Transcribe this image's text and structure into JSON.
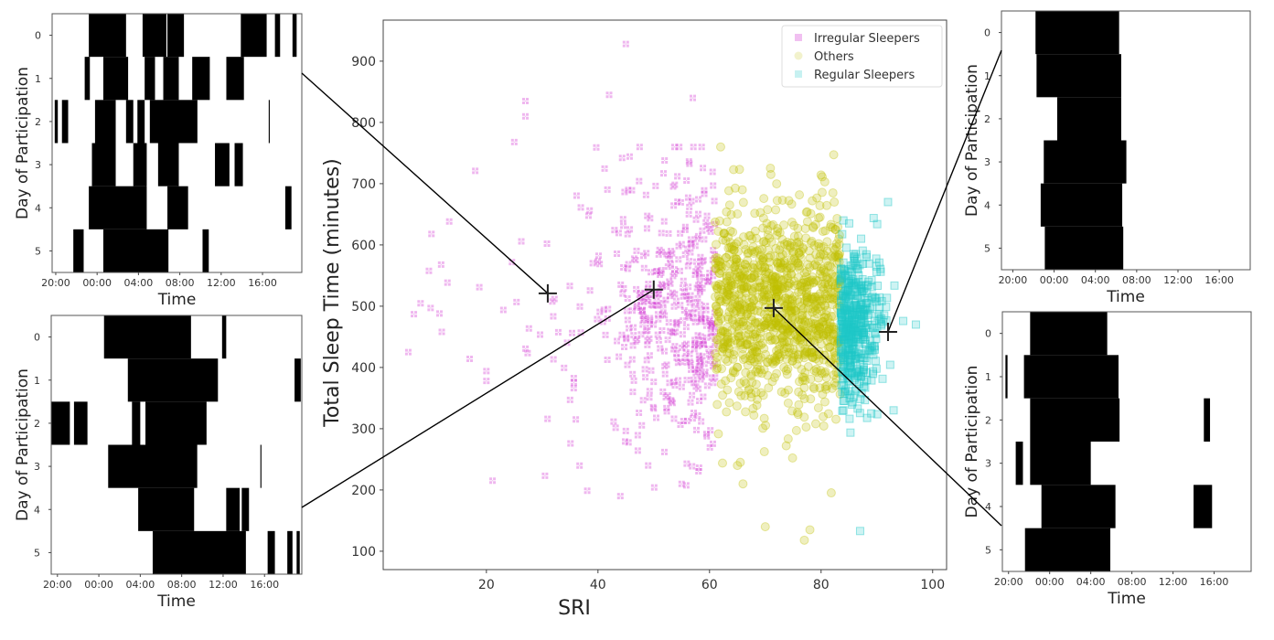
{
  "chart_data": [
    {
      "type": "scatter",
      "title": "",
      "xlabel": "SRI",
      "ylabel": "Total Sleep Time (minutes)",
      "xlim": [
        1.5,
        102.5
      ],
      "ylim": [
        70,
        967
      ],
      "xticks": [
        20,
        40,
        60,
        80,
        100
      ],
      "yticks": [
        100,
        200,
        300,
        400,
        500,
        600,
        700,
        800,
        900
      ],
      "legend": {
        "placement": "top-right",
        "entries": [
          "Irregular Sleepers",
          "Others",
          "Regular Sleepers"
        ]
      },
      "series": [
        {
          "name": "Irregular Sleepers",
          "color": "#d030d0",
          "marker": "x-square",
          "sri_range": [
            5,
            61
          ],
          "approx_count": 450,
          "center": [
            52,
            490
          ],
          "spread": [
            10,
            110
          ],
          "notable_points": [
            [
              6,
              425
            ],
            [
              7,
              487
            ],
            [
              12,
              458
            ],
            [
              10,
              497
            ],
            [
              17,
              414
            ],
            [
              20,
              378
            ],
            [
              20,
              394
            ],
            [
              27,
              835
            ],
            [
              27,
              810
            ],
            [
              25,
              768
            ],
            [
              18,
              721
            ],
            [
              45,
              928
            ],
            [
              42,
              845
            ],
            [
              57,
              840
            ],
            [
              35,
              347
            ],
            [
              55,
              210
            ],
            [
              49,
              240
            ]
          ]
        },
        {
          "name": "Others",
          "color": "#c0c000",
          "marker": "circle",
          "sri_range": [
            61,
            83.5
          ],
          "approx_count": 1100,
          "center": [
            72,
            500
          ],
          "spread": [
            6.5,
            85
          ],
          "notable_points": [
            [
              62,
              760
            ],
            [
              71,
              715
            ],
            [
              70,
              140
            ],
            [
              78,
              135
            ],
            [
              77,
              118
            ],
            [
              65,
              240
            ],
            [
              66,
              210
            ]
          ]
        },
        {
          "name": "Regular Sleepers",
          "color": "#20c8c8",
          "marker": "square",
          "sri_range": [
            83.5,
            98
          ],
          "approx_count": 450,
          "center": [
            88,
            470
          ],
          "spread": [
            3.5,
            60
          ],
          "notable_points": [
            [
              84,
              640
            ],
            [
              92,
              670
            ],
            [
              97,
              470
            ],
            [
              87,
              133
            ],
            [
              89,
              325
            ],
            [
              84,
              330
            ],
            [
              93,
              330
            ]
          ]
        }
      ],
      "centroids": [
        {
          "sri": 31,
          "tst": 521,
          "panel": "top-left"
        },
        {
          "sri": 50,
          "tst": 527,
          "panel": "bottom-left"
        },
        {
          "sri": 71.5,
          "tst": 497,
          "panel": "bottom-right"
        },
        {
          "sri": 92,
          "tst": 458,
          "panel": "top-right"
        }
      ]
    },
    {
      "type": "timeline",
      "panel": "top-left",
      "xlabel": "Time",
      "ylabel": "Day of Participation",
      "xticks": [
        "20:00",
        "00:00",
        "04:00",
        "08:00",
        "12:00",
        "16:00"
      ],
      "yticks": [
        "0",
        "1",
        "2",
        "3",
        "4",
        "5"
      ],
      "unit": "hours since 20:00",
      "sleep_bouts": [
        [
          [
            3.2,
            6.8
          ],
          [
            8.4,
            10.7
          ],
          [
            10.8,
            12.4
          ],
          [
            17.9,
            20.4
          ],
          [
            21.2,
            21.7
          ],
          [
            22.9,
            23.3
          ]
        ],
        [
          [
            2.8,
            3.3
          ],
          [
            4.6,
            7.0
          ],
          [
            8.6,
            9.6
          ],
          [
            10.4,
            11.9
          ],
          [
            13.2,
            14.9
          ],
          [
            16.5,
            18.2
          ]
        ],
        [
          [
            -0.1,
            0.2
          ],
          [
            0.6,
            1.2
          ],
          [
            3.8,
            5.8
          ],
          [
            6.8,
            7.5
          ],
          [
            7.9,
            8.6
          ],
          [
            9.1,
            13.7
          ],
          [
            20.6,
            20.7
          ]
        ],
        [
          [
            3.5,
            5.8
          ],
          [
            7.5,
            8.8
          ],
          [
            9.9,
            11.9
          ],
          [
            15.4,
            16.8
          ],
          [
            17.3,
            18.1
          ]
        ],
        [
          [
            3.2,
            8.8
          ],
          [
            10.8,
            12.8
          ],
          [
            22.2,
            22.8
          ]
        ],
        [
          [
            1.7,
            2.7
          ],
          [
            4.6,
            10.9
          ],
          [
            14.2,
            14.8
          ]
        ]
      ]
    },
    {
      "type": "timeline",
      "panel": "bottom-left",
      "xlabel": "Time",
      "ylabel": "Day of Participation",
      "xticks": [
        "20:00",
        "00:00",
        "04:00",
        "08:00",
        "12:00",
        "16:00"
      ],
      "yticks": [
        "0",
        "1",
        "2",
        "3",
        "4",
        "5"
      ],
      "unit": "hours since 20:00",
      "sleep_bouts": [
        [
          [
            4.5,
            12.9
          ],
          [
            15.9,
            16.3
          ]
        ],
        [
          [
            6.8,
            15.5
          ],
          [
            22.9,
            23.5
          ]
        ],
        [
          [
            -0.6,
            1.2
          ],
          [
            1.6,
            2.9
          ],
          [
            7.2,
            8.0
          ],
          [
            8.5,
            14.4
          ]
        ],
        [
          [
            4.9,
            13.5
          ],
          [
            19.6,
            19.7
          ]
        ],
        [
          [
            7.8,
            13.2
          ],
          [
            16.3,
            17.6
          ],
          [
            17.8,
            18.5
          ]
        ],
        [
          [
            9.2,
            18.2
          ],
          [
            20.3,
            21.0
          ],
          [
            22.2,
            22.7
          ],
          [
            23.1,
            23.4
          ]
        ]
      ]
    },
    {
      "type": "timeline",
      "panel": "top-right",
      "xlabel": "Time",
      "ylabel": "Day of Participation",
      "xticks": [
        "20:00",
        "00:00",
        "04:00",
        "08:00",
        "12:00",
        "16:00"
      ],
      "yticks": [
        "0",
        "1",
        "2",
        "3",
        "4",
        "5"
      ],
      "unit": "hours since 20:00",
      "sleep_bouts": [
        [
          [
            2.2,
            10.3
          ]
        ],
        [
          [
            2.3,
            10.5
          ]
        ],
        [
          [
            4.3,
            10.5
          ]
        ],
        [
          [
            3.0,
            11.0
          ]
        ],
        [
          [
            2.7,
            10.6
          ]
        ],
        [
          [
            3.1,
            10.7
          ]
        ]
      ]
    },
    {
      "type": "timeline",
      "panel": "bottom-right",
      "xlabel": "Time",
      "ylabel": "Day of Participation",
      "xticks": [
        "20:00",
        "00:00",
        "04:00",
        "08:00",
        "12:00",
        "16:00"
      ],
      "yticks": [
        "0",
        "1",
        "2",
        "3",
        "4",
        "5"
      ],
      "unit": "hours since 20:00",
      "sleep_bouts": [
        [
          [
            2.1,
            9.6
          ]
        ],
        [
          [
            -0.3,
            -0.1
          ],
          [
            1.5,
            10.7
          ]
        ],
        [
          [
            2.1,
            10.8
          ],
          [
            19.0,
            19.6
          ]
        ],
        [
          [
            0.7,
            1.4
          ],
          [
            2.1,
            8.0
          ]
        ],
        [
          [
            3.2,
            10.4
          ],
          [
            18.0,
            19.8
          ]
        ],
        [
          [
            1.6,
            9.9
          ]
        ]
      ]
    }
  ]
}
